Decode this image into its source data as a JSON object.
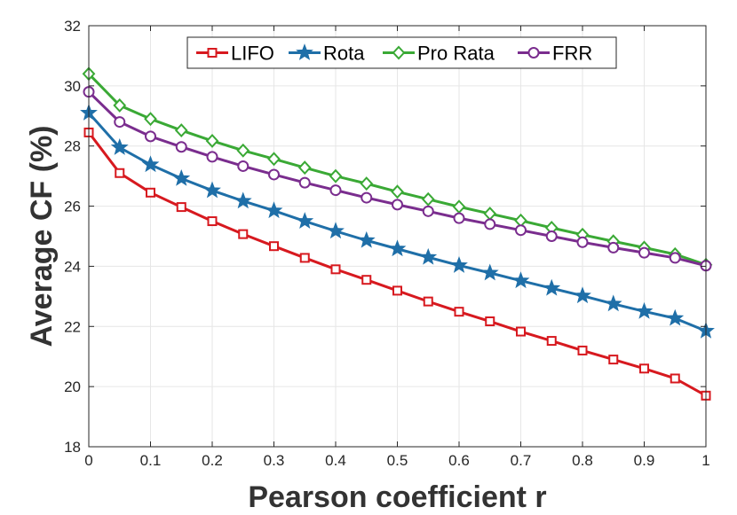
{
  "chart_data": {
    "type": "line",
    "title": "",
    "xlabel": "Pearson coefficient r",
    "ylabel": "Average CF (%)",
    "xlim": [
      0,
      1
    ],
    "ylim": [
      18,
      32
    ],
    "grid": true,
    "legend_position": "top",
    "x": [
      0,
      0.05,
      0.1,
      0.15,
      0.2,
      0.25,
      0.3,
      0.35,
      0.4,
      0.45,
      0.5,
      0.55,
      0.6,
      0.65,
      0.7,
      0.75,
      0.8,
      0.85,
      0.9,
      0.95,
      1
    ],
    "xticks": [
      0,
      0.1,
      0.2,
      0.3,
      0.4,
      0.5,
      0.6,
      0.7,
      0.8,
      0.9,
      1
    ],
    "xtick_labels": [
      "0",
      "0.1",
      "0.2",
      "0.3",
      "0.4",
      "0.5",
      "0.6",
      "0.7",
      "0.8",
      "0.9",
      "1"
    ],
    "yticks": [
      18,
      20,
      22,
      24,
      26,
      28,
      30,
      32
    ],
    "ytick_labels": [
      "18",
      "20",
      "22",
      "24",
      "26",
      "28",
      "30",
      "32"
    ],
    "series": [
      {
        "name": "LIFO",
        "color": "#d7191f",
        "marker": "square",
        "values": [
          28.45,
          27.1,
          26.45,
          25.97,
          25.5,
          25.07,
          24.67,
          24.28,
          23.9,
          23.55,
          23.19,
          22.83,
          22.49,
          22.17,
          21.83,
          21.52,
          21.2,
          20.9,
          20.6,
          20.27,
          19.7
        ]
      },
      {
        "name": "Rota",
        "color": "#1f6fa8",
        "marker": "star",
        "values": [
          29.1,
          27.95,
          27.38,
          26.92,
          26.52,
          26.17,
          25.85,
          25.5,
          25.17,
          24.86,
          24.58,
          24.3,
          24.03,
          23.78,
          23.52,
          23.27,
          23.02,
          22.75,
          22.5,
          22.27,
          21.85
        ]
      },
      {
        "name": "Pro Rata",
        "color": "#3aa935",
        "marker": "diamond",
        "values": [
          30.4,
          29.35,
          28.9,
          28.52,
          28.17,
          27.85,
          27.57,
          27.28,
          27.0,
          26.75,
          26.48,
          26.23,
          25.98,
          25.75,
          25.52,
          25.28,
          25.05,
          24.83,
          24.62,
          24.4,
          24.05
        ]
      },
      {
        "name": "FRR",
        "color": "#7a2d8e",
        "marker": "circle",
        "values": [
          29.8,
          28.8,
          28.32,
          27.97,
          27.64,
          27.33,
          27.05,
          26.78,
          26.53,
          26.28,
          26.05,
          25.83,
          25.6,
          25.4,
          25.2,
          25.0,
          24.8,
          24.62,
          24.45,
          24.28,
          24.02
        ]
      }
    ]
  }
}
